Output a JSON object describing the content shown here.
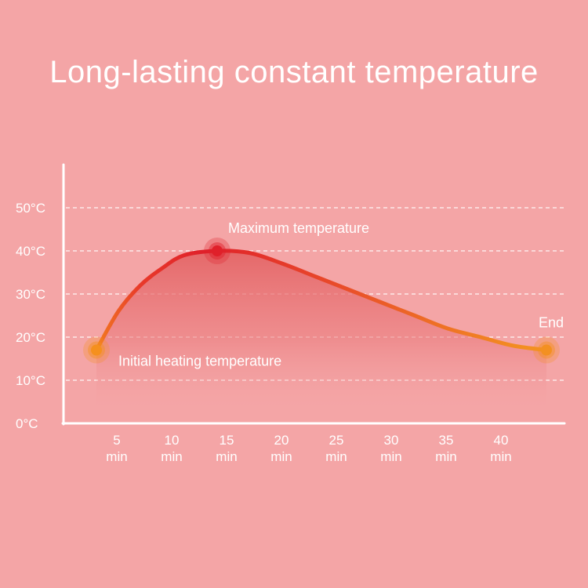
{
  "chart_data": {
    "type": "line",
    "title": "Long-lasting constant temperature",
    "x_ticks": [
      {
        "value": 5,
        "label": "5",
        "unit": "min"
      },
      {
        "value": 10,
        "label": "10",
        "unit": "min"
      },
      {
        "value": 15,
        "label": "15",
        "unit": "min"
      },
      {
        "value": 20,
        "label": "20",
        "unit": "min"
      },
      {
        "value": 25,
        "label": "25",
        "unit": "min"
      },
      {
        "value": 30,
        "label": "30",
        "unit": "min"
      },
      {
        "value": 35,
        "label": "35",
        "unit": "min"
      },
      {
        "value": 40,
        "label": "40",
        "unit": "min"
      }
    ],
    "y_ticks": [
      {
        "value": 0,
        "label": "0°C"
      },
      {
        "value": 10,
        "label": "10°C"
      },
      {
        "value": 20,
        "label": "20°C"
      },
      {
        "value": 30,
        "label": "30°C"
      },
      {
        "value": 40,
        "label": "40°C"
      },
      {
        "value": 50,
        "label": "50°C"
      }
    ],
    "xlim": [
      0,
      45
    ],
    "ylim": [
      0,
      55
    ],
    "grid": true,
    "series": [
      {
        "x": [
          3,
          5,
          7,
          9,
          11,
          14,
          17,
          20,
          23,
          26,
          29,
          32,
          35,
          38,
          41,
          44
        ],
        "y": [
          17,
          26,
          32,
          36,
          39,
          40,
          39.5,
          37,
          34,
          31,
          28,
          25,
          22,
          20,
          18,
          17
        ]
      }
    ],
    "annotations": [
      {
        "text": "Initial heating temperature",
        "x": 3,
        "y": 17
      },
      {
        "text": "Maximum temperature",
        "x": 14,
        "y": 40
      },
      {
        "text": "End",
        "x": 44,
        "y": 17
      }
    ],
    "colors": {
      "background": "#f4a5a6",
      "line_start": "#f5901e",
      "line_peak": "#e0202a",
      "line_end": "#f39021",
      "axis": "#ffffff",
      "grid": "#ffffff"
    }
  }
}
